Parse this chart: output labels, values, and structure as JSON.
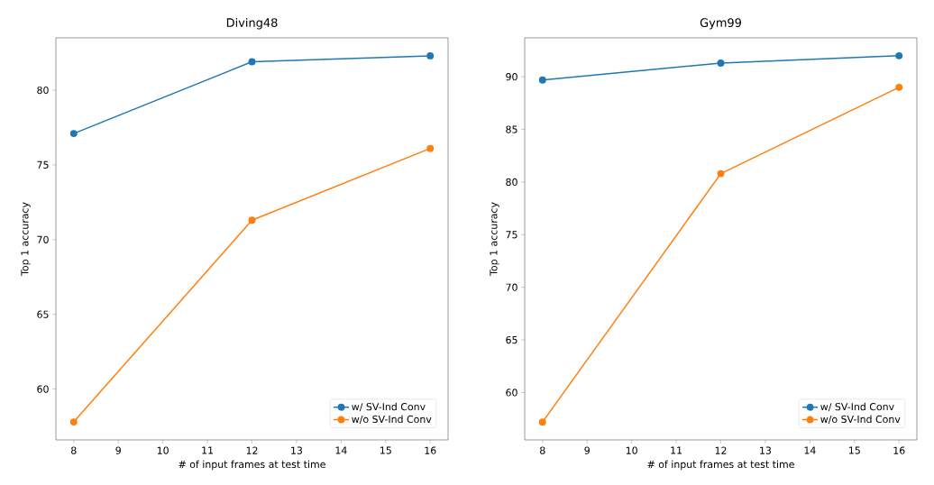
{
  "chart_data": [
    {
      "type": "line",
      "title": "Diving48",
      "xlabel": "# of input frames at test time",
      "ylabel": "Top 1 accuracy",
      "x": [
        8,
        12,
        16
      ],
      "series": [
        {
          "name": "w/ SV-Ind Conv",
          "color": "#1f77b4",
          "values": [
            77.1,
            81.9,
            82.3
          ]
        },
        {
          "name": "w/o SV-Ind Conv",
          "color": "#ff7f0e",
          "values": [
            57.8,
            71.3,
            76.1
          ]
        }
      ],
      "xlim": [
        7.6,
        16.4
      ],
      "ylim": [
        56.6,
        83.5
      ],
      "xticks": [
        8,
        9,
        10,
        11,
        12,
        13,
        14,
        15,
        16
      ],
      "yticks": [
        60,
        65,
        70,
        75,
        80
      ],
      "legend": "bottom right",
      "marker": "circle",
      "line_style": "solid"
    },
    {
      "type": "line",
      "title": "Gym99",
      "xlabel": "# of input frames at test time",
      "ylabel": "Top 1 accuracy",
      "x": [
        8,
        12,
        16
      ],
      "series": [
        {
          "name": "w/ SV-Ind Conv",
          "color": "#1f77b4",
          "values": [
            89.7,
            91.3,
            92.0
          ]
        },
        {
          "name": "w/o SV-Ind Conv",
          "color": "#ff7f0e",
          "values": [
            57.2,
            80.8,
            89.0
          ]
        }
      ],
      "xlim": [
        7.6,
        16.4
      ],
      "ylim": [
        55.5,
        93.7
      ],
      "xticks": [
        8,
        9,
        10,
        11,
        12,
        13,
        14,
        15,
        16
      ],
      "yticks": [
        60,
        65,
        70,
        75,
        80,
        85,
        90
      ],
      "legend": "bottom right",
      "marker": "circle",
      "line_style": "solid"
    }
  ]
}
